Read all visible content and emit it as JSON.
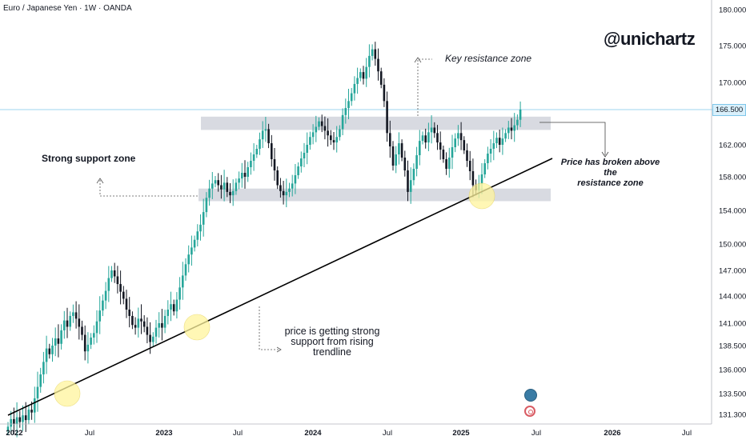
{
  "header": {
    "title": "Euro / Japanese Yen · 1W · OANDA"
  },
  "brand": {
    "handle": "@unichartz"
  },
  "annotations": {
    "key_resistance": "Key resistance zone",
    "strong_support": "Strong support zone",
    "price_broken_1": "Price has broken above the",
    "price_broken_2": "resistance zone",
    "trendline_1": "price is getting strong",
    "trendline_2": "support from rising",
    "trendline_3": "trendline"
  },
  "current_price": {
    "label": "166.500",
    "value": 166.5
  },
  "colors": {
    "up": "#26a69a",
    "down": "#131722",
    "zone": "#d1d4dc",
    "highlight": "#fff59d",
    "price_line": "#7fc7ea"
  },
  "icons": [
    "tradingview-globe-icon",
    "record-icon"
  ],
  "chart_data": {
    "type": "candlestick",
    "title": "Euro / Japanese Yen · 1W · OANDA",
    "y_ticks": [
      131.3,
      133.5,
      136.0,
      138.5,
      141.0,
      144.0,
      147.0,
      150.0,
      154.0,
      158.0,
      162.0,
      166.5,
      170.0,
      175.0,
      180.0
    ],
    "y_tick_labels": [
      "131.300",
      "133.500",
      "136.000",
      "138.500",
      "141.000",
      "144.000",
      "147.000",
      "150.000",
      "154.000",
      "158.000",
      "162.000",
      "166.500",
      "170.000",
      "175.000",
      "180.000"
    ],
    "x_ticks": [
      {
        "label": "2022",
        "bold": true
      },
      {
        "label": "Jul",
        "bold": false
      },
      {
        "label": "2023",
        "bold": true
      },
      {
        "label": "Jul",
        "bold": false
      },
      {
        "label": "2024",
        "bold": true
      },
      {
        "label": "Jul",
        "bold": false
      },
      {
        "label": "2025",
        "bold": true
      },
      {
        "label": "Jul",
        "bold": false
      },
      {
        "label": "2026",
        "bold": true
      },
      {
        "label": "Jul",
        "bold": false
      }
    ],
    "resistance_zone": [
      163.9,
      165.6
    ],
    "support_zone": [
      155.1,
      156.6
    ],
    "trendline": {
      "from": [
        "2022-01",
        131.3
      ],
      "to": [
        "2025-06",
        160.0
      ]
    },
    "closes": [
      130.0,
      130.8,
      130.3,
      131.0,
      130.5,
      131.2,
      130.7,
      131.8,
      131.5,
      133.0,
      134.2,
      135.5,
      136.8,
      138.2,
      137.6,
      138.5,
      139.3,
      138.7,
      140.2,
      141.3,
      140.6,
      141.8,
      142.2,
      141.5,
      140.6,
      139.7,
      137.9,
      138.6,
      139.4,
      139.9,
      141.2,
      142.4,
      143.5,
      144.6,
      146.1,
      147.0,
      146.3,
      145.4,
      144.5,
      143.7,
      142.5,
      141.8,
      140.8,
      140.5,
      141.5,
      141.2,
      140.6,
      139.7,
      138.9,
      139.5,
      140.5,
      141.0,
      140.5,
      141.8,
      142.5,
      143.1,
      142.3,
      143.6,
      145.0,
      146.4,
      147.7,
      148.8,
      149.6,
      150.5,
      151.5,
      152.3,
      153.8,
      155.5,
      156.6,
      157.2,
      157.6,
      157.0,
      156.5,
      157.3,
      156.2,
      155.8,
      156.3,
      157.3,
      157.8,
      158.5,
      158.0,
      159.2,
      160.0,
      160.8,
      161.5,
      162.7,
      163.8,
      164.0,
      162.2,
      160.2,
      158.8,
      157.0,
      156.3,
      155.8,
      156.2,
      156.6,
      157.2,
      158.2,
      159.3,
      160.3,
      161.0,
      162.0,
      163.0,
      163.6,
      164.3,
      165.0,
      164.4,
      163.8,
      163.2,
      162.6,
      162.3,
      163.0,
      164.0,
      165.8,
      166.7,
      167.6,
      168.6,
      169.8,
      170.6,
      171.4,
      170.5,
      172.1,
      173.6,
      174.5,
      173.2,
      171.5,
      169.7,
      167.6,
      163.5,
      161.8,
      159.4,
      160.8,
      162.2,
      160.4,
      158.8,
      156.2,
      157.6,
      159.0,
      160.7,
      162.5,
      163.2,
      162.3,
      163.6,
      164.2,
      163.5,
      162.3,
      161.4,
      160.2,
      159.0,
      160.4,
      161.7,
      162.8,
      163.5,
      162.6,
      161.3,
      160.0,
      158.7,
      157.0,
      156.4,
      157.2,
      158.3,
      159.7,
      160.9,
      161.5,
      162.2,
      162.9,
      162.0,
      162.8,
      163.5,
      164.2,
      163.8,
      164.5,
      165.2,
      166.5
    ]
  }
}
